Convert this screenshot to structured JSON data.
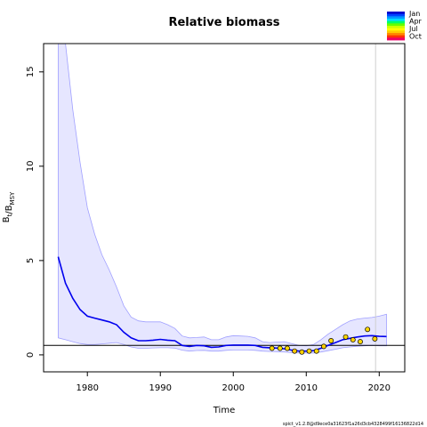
{
  "chart_data": {
    "type": "line",
    "title": "Relative biomass",
    "xlabel": "Time",
    "ylabel": "B_t/B_MSY",
    "xlim": [
      1974,
      2023.5
    ],
    "ylim": [
      -0.9,
      16.5
    ],
    "xticks": [
      1980,
      1990,
      2000,
      2010,
      2020
    ],
    "yticks": [
      0,
      5,
      10,
      15
    ],
    "reference_line_y": 0.5,
    "vertical_line_x": 2019.5,
    "estimate": {
      "name": "",
      "color": "#0000ee",
      "x": [
        1976,
        1977,
        1978,
        1979,
        1980,
        1981,
        1982,
        1983,
        1984,
        1985,
        1986,
        1987,
        1988,
        1989,
        1990,
        1991,
        1992,
        1993,
        1994,
        1995,
        1996,
        1997,
        1998,
        1999,
        2000,
        2001,
        2002,
        2003,
        2004,
        2005,
        2006,
        2007,
        2008,
        2009,
        2010,
        2011,
        2012,
        2013,
        2014,
        2015,
        2016,
        2017,
        2018,
        2019,
        2020,
        2021
      ],
      "y": [
        5.2,
        3.8,
        3.0,
        2.4,
        2.05,
        1.95,
        1.85,
        1.75,
        1.6,
        1.2,
        0.9,
        0.75,
        0.75,
        0.78,
        0.82,
        0.78,
        0.75,
        0.5,
        0.45,
        0.5,
        0.48,
        0.4,
        0.42,
        0.5,
        0.52,
        0.52,
        0.52,
        0.5,
        0.4,
        0.38,
        0.36,
        0.32,
        0.25,
        0.2,
        0.2,
        0.22,
        0.35,
        0.5,
        0.65,
        0.8,
        0.88,
        0.95,
        1.0,
        1.02,
        0.98,
        0.97
      ]
    },
    "ci_upper": {
      "x": [
        1976,
        1977,
        1978,
        1979,
        1980,
        1981,
        1982,
        1983,
        1984,
        1985,
        1986,
        1987,
        1988,
        1989,
        1990,
        1991,
        1992,
        1993,
        1994,
        1995,
        1996,
        1997,
        1998,
        1999,
        2000,
        2001,
        2002,
        2003,
        2004,
        2005,
        2006,
        2007,
        2008,
        2009,
        2010,
        2011,
        2012,
        2013,
        2014,
        2015,
        2016,
        2017,
        2018,
        2019,
        2020,
        2021
      ],
      "y": [
        16.5,
        16.5,
        13.0,
        10.2,
        7.8,
        6.4,
        5.3,
        4.5,
        3.6,
        2.6,
        2.0,
        1.8,
        1.75,
        1.75,
        1.75,
        1.6,
        1.4,
        1.0,
        0.9,
        0.92,
        0.95,
        0.8,
        0.8,
        0.95,
        1.02,
        1.0,
        0.98,
        0.9,
        0.7,
        0.65,
        0.68,
        0.7,
        0.6,
        0.5,
        0.48,
        0.55,
        0.8,
        1.1,
        1.35,
        1.6,
        1.8,
        1.9,
        1.95,
        1.98,
        2.05,
        2.15
      ]
    },
    "ci_lower": {
      "x": [
        1976,
        1977,
        1978,
        1979,
        1980,
        1981,
        1982,
        1983,
        1984,
        1985,
        1986,
        1987,
        1988,
        1989,
        1990,
        1991,
        1992,
        1993,
        1994,
        1995,
        1996,
        1997,
        1998,
        1999,
        2000,
        2001,
        2002,
        2003,
        2004,
        2005,
        2006,
        2007,
        2008,
        2009,
        2010,
        2011,
        2012,
        2013,
        2014,
        2015,
        2016,
        2017,
        2018,
        2019,
        2020,
        2021
      ],
      "y": [
        0.9,
        0.8,
        0.7,
        0.6,
        0.55,
        0.55,
        0.58,
        0.62,
        0.65,
        0.55,
        0.42,
        0.35,
        0.35,
        0.37,
        0.38,
        0.38,
        0.36,
        0.25,
        0.2,
        0.23,
        0.24,
        0.2,
        0.2,
        0.24,
        0.26,
        0.26,
        0.26,
        0.24,
        0.2,
        0.18,
        0.17,
        0.15,
        0.12,
        0.1,
        0.1,
        0.1,
        0.15,
        0.22,
        0.3,
        0.38,
        0.42,
        0.46,
        0.48,
        0.5,
        0.48,
        0.48
      ]
    },
    "observations": [
      {
        "x": 2005.3,
        "y": 0.35,
        "color": "#ffd700"
      },
      {
        "x": 2006.4,
        "y": 0.35,
        "color": "#ffe600"
      },
      {
        "x": 2007.4,
        "y": 0.35,
        "color": "#ffd700"
      },
      {
        "x": 2008.4,
        "y": 0.2,
        "color": "#ffc800"
      },
      {
        "x": 2009.4,
        "y": 0.15,
        "color": "#ffd000"
      },
      {
        "x": 2010.4,
        "y": 0.2,
        "color": "#ffd700"
      },
      {
        "x": 2011.4,
        "y": 0.2,
        "color": "#ffd700"
      },
      {
        "x": 2012.4,
        "y": 0.45,
        "color": "#ffd000"
      },
      {
        "x": 2013.4,
        "y": 0.75,
        "color": "#ffd700"
      },
      {
        "x": 2015.4,
        "y": 0.95,
        "color": "#ffd700"
      },
      {
        "x": 2016.4,
        "y": 0.8,
        "color": "#ffd000"
      },
      {
        "x": 2017.4,
        "y": 0.7,
        "color": "#ffd700"
      },
      {
        "x": 2018.4,
        "y": 1.35,
        "color": "#ffd700"
      },
      {
        "x": 2019.4,
        "y": 0.85,
        "color": "#ffd000"
      }
    ],
    "legend": {
      "placement": "top-right",
      "labels": [
        "Jan",
        "Apr",
        "Jul",
        "Oct"
      ],
      "colors": [
        "#0000cc",
        "#0044ff",
        "#0099ff",
        "#00ddff",
        "#00ff66",
        "#66ff00",
        "#ccff00",
        "#ffff00",
        "#ffcc00",
        "#ff8800",
        "#ff3300",
        "#ee0066"
      ]
    },
    "grid": false
  },
  "footer_text": "spict_v1.2.8@d9ece0a31623f1a26d3cb4328499f16136822d14"
}
